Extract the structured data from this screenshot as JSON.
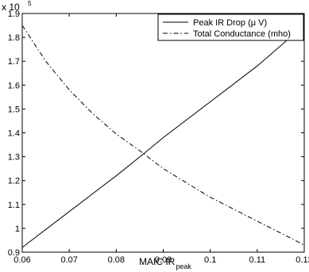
{
  "chart_data": {
    "type": "line",
    "xlabel": "MAIC IR",
    "xlabel_subscript": "peak",
    "y_exponent_label": "x 10",
    "y_exponent_power": "5",
    "xlim": [
      0.06,
      0.12
    ],
    "ylim": [
      0.9,
      1.9
    ],
    "xticks": [
      0.06,
      0.07,
      0.08,
      0.09,
      0.1,
      0.11,
      0.12
    ],
    "xtick_labels": [
      "0.06",
      "0.07",
      "0.08",
      "0.09",
      "0.1",
      "0.11",
      "0.12"
    ],
    "yticks": [
      0.9,
      1.0,
      1.1,
      1.2,
      1.3,
      1.4,
      1.5,
      1.6,
      1.7,
      1.8,
      1.9
    ],
    "ytick_labels": [
      "0.9",
      "1",
      "1.1",
      "1.2",
      "1.3",
      "1.4",
      "1.5",
      "1.6",
      "1.7",
      "1.8",
      "1.9"
    ],
    "grid": false,
    "legend_position": "top-right",
    "series": [
      {
        "name": "Peak IR Drop (μ V)",
        "style": "solid",
        "x": [
          0.06,
          0.07,
          0.08,
          0.086,
          0.09,
          0.1,
          0.11,
          0.12
        ],
        "y": [
          0.92,
          1.07,
          1.22,
          1.315,
          1.38,
          1.53,
          1.68,
          1.85
        ]
      },
      {
        "name": "Total Conductance (mho)",
        "style": "dashdot",
        "x": [
          0.06,
          0.065,
          0.07,
          0.075,
          0.08,
          0.085,
          0.09,
          0.095,
          0.1,
          0.105,
          0.11,
          0.115,
          0.12
        ],
        "y": [
          1.85,
          1.7,
          1.58,
          1.48,
          1.395,
          1.325,
          1.25,
          1.19,
          1.13,
          1.08,
          1.03,
          0.98,
          0.93
        ]
      }
    ]
  }
}
